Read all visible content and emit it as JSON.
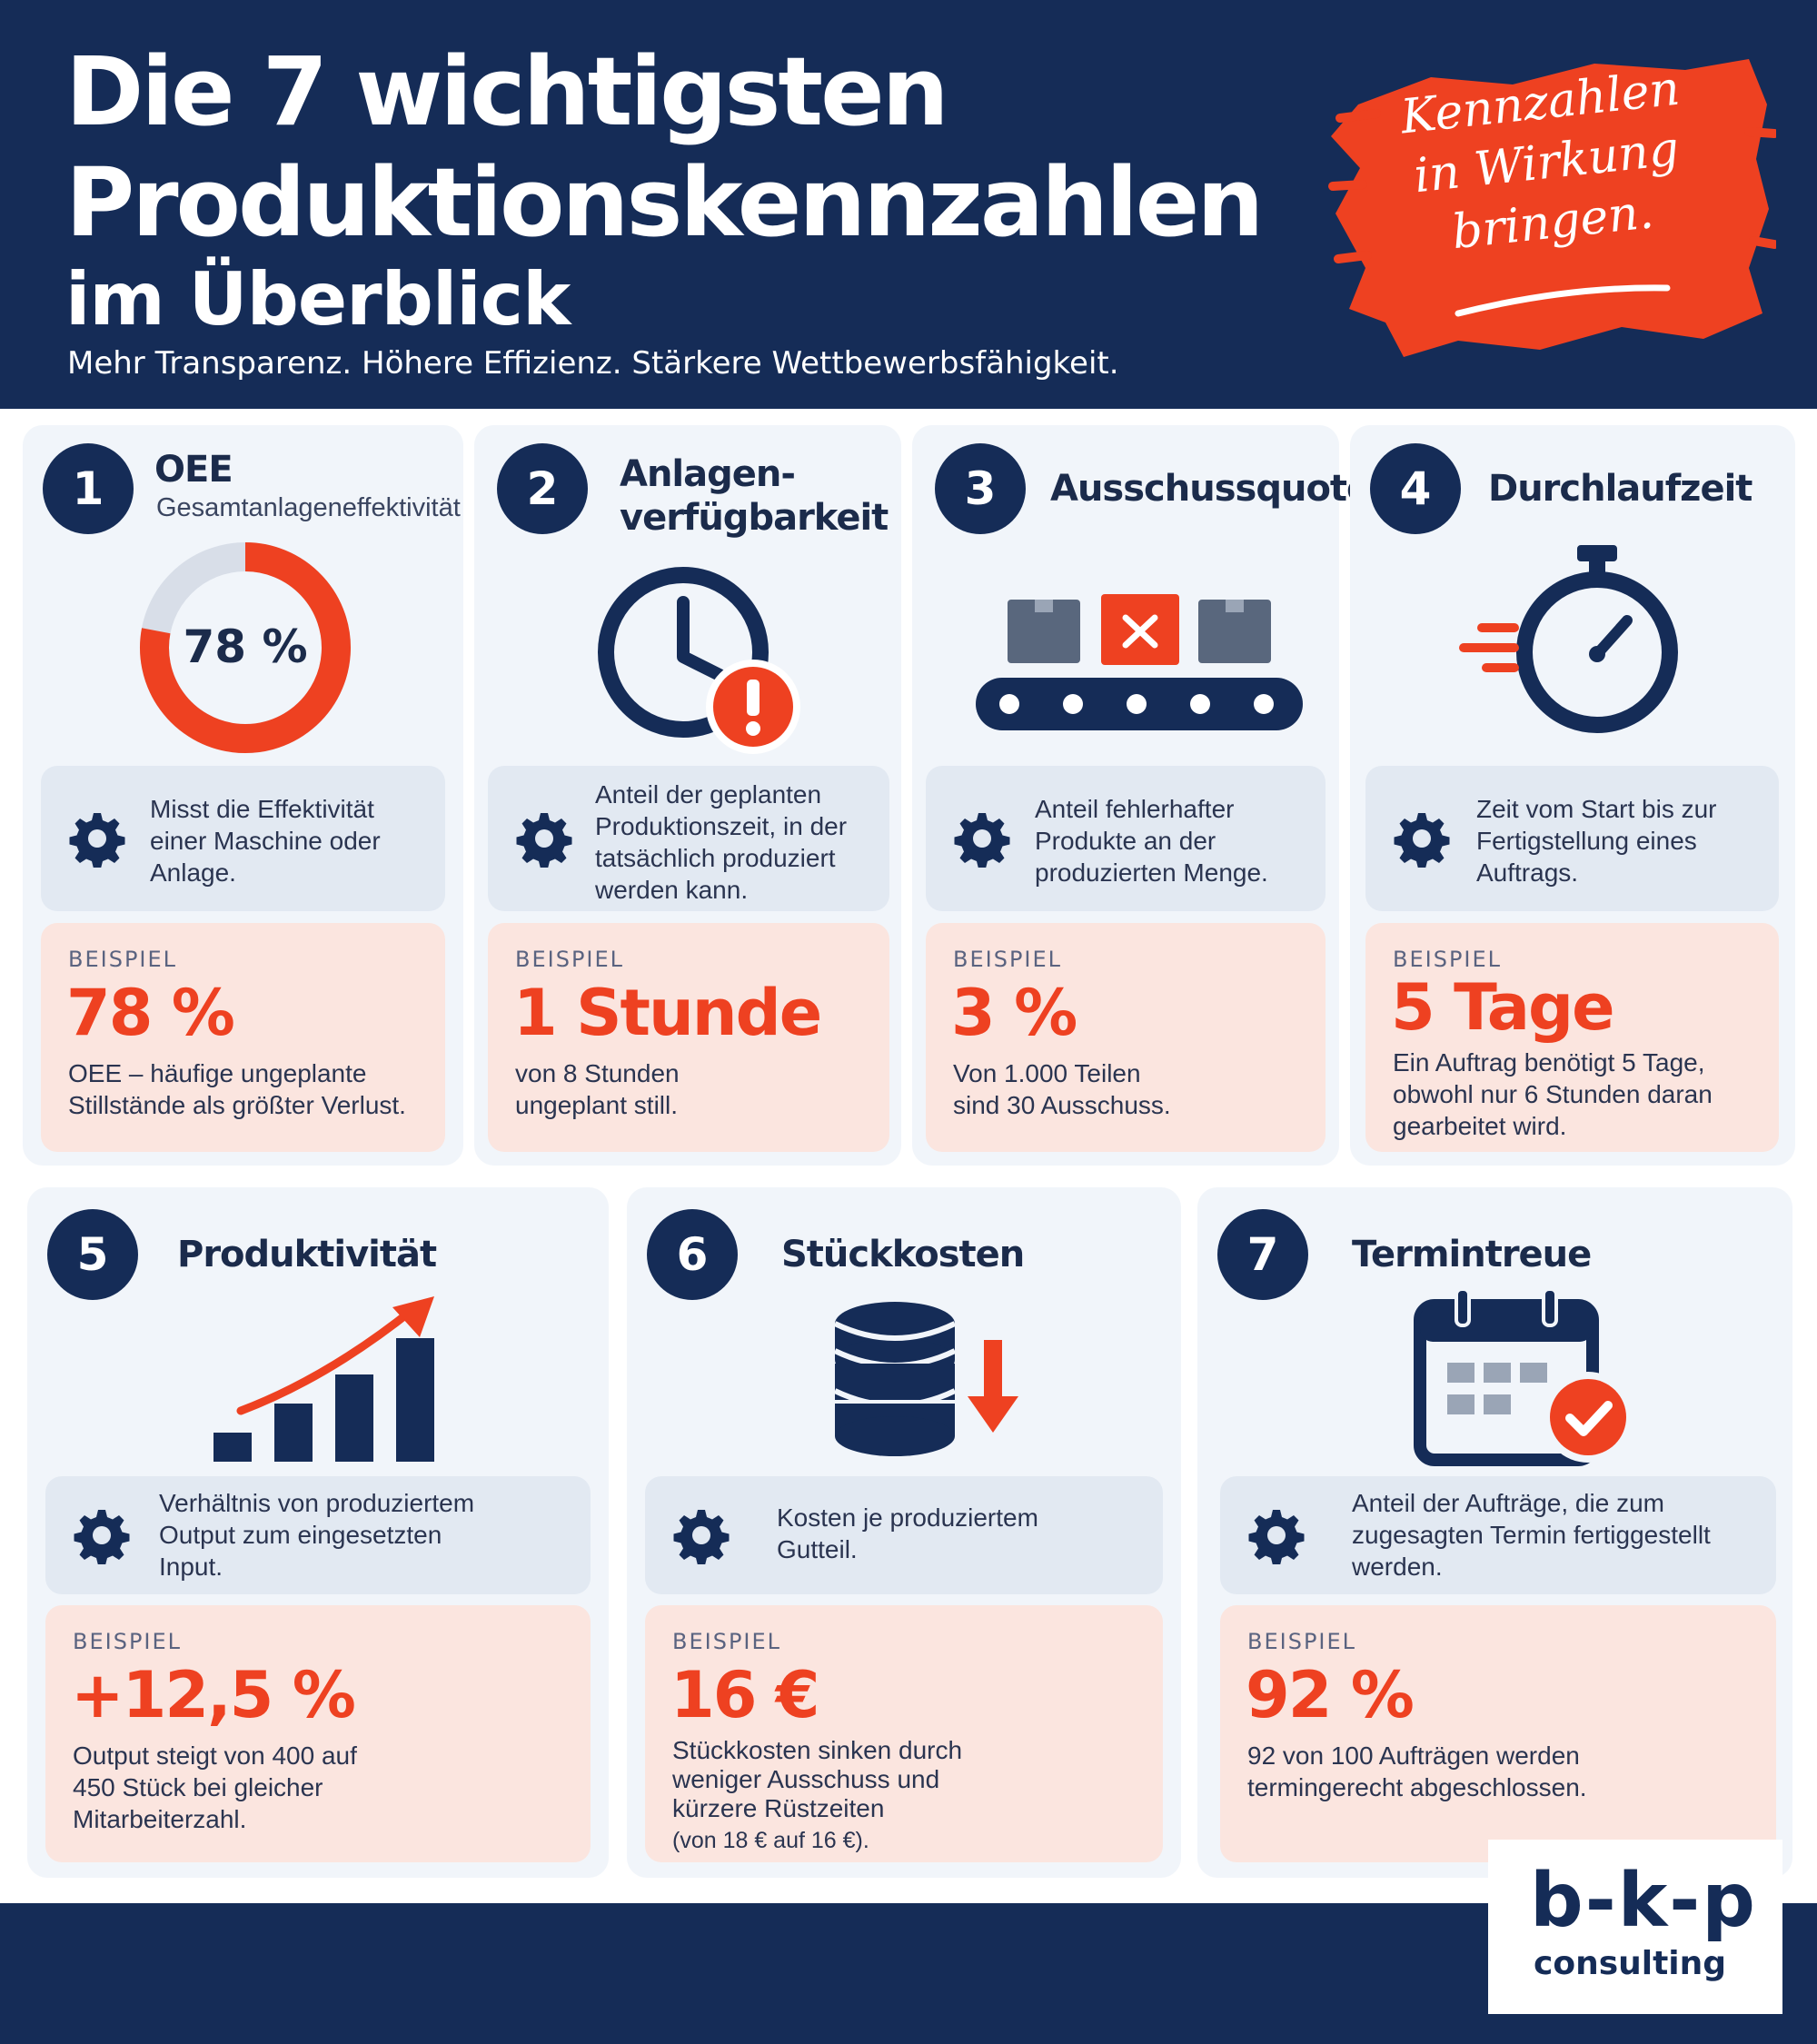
{
  "header": {
    "title_line1": "Die 7 wichtigsten",
    "title_line2": "Produktionskennzahlen",
    "title_line3": "im Überblick",
    "subtitle": "Mehr Transparenz. Höhere Effizienz. Stärkere Wettbewerbsfähigkeit.",
    "badge_lines": [
      "Kennzahlen",
      "in Wirkung",
      "bringen."
    ]
  },
  "colors": {
    "navy": "#152c57",
    "accent": "#ee4121",
    "card_bg": "#f1f5fa",
    "desc_bg": "#e2e9f2",
    "example_bg": "#fbe5df"
  },
  "kpis": [
    {
      "number": "1",
      "title": "OEE",
      "subtitle": "Gesamtanlageneffektivität",
      "icon": "donut-chart-icon",
      "gauge_value": "78 %",
      "gauge_fraction": 0.78,
      "description": "Misst die Effektivität einer Maschine oder Anlage.",
      "example_label": "BEISPIEL",
      "example_value": "78 %",
      "example_text": "OEE – häufige ungeplante Stillstände als größter Verlust."
    },
    {
      "number": "2",
      "title": "Anlagen-\nverfügbarkeit",
      "icon": "clock-warning-icon",
      "description": "Anteil der geplanten Produktionszeit, in der tatsächlich produziert werden kann.",
      "example_label": "BEISPIEL",
      "example_value": "1 Stunde",
      "example_text": "von 8 Stunden ungeplant still."
    },
    {
      "number": "3",
      "title": "Ausschussquote",
      "icon": "conveyor-reject-icon",
      "description": "Anteil fehlerhafter Produkte an der produzierten Menge.",
      "example_label": "BEISPIEL",
      "example_value": "3 %",
      "example_text": "Von 1.000 Teilen sind 30 Ausschuss."
    },
    {
      "number": "4",
      "title": "Durchlaufzeit",
      "icon": "stopwatch-icon",
      "description": "Zeit vom Start bis zur Fertigstellung eines Auftrags.",
      "example_label": "BEISPIEL",
      "example_value": "5 Tage",
      "example_text": "Ein Auftrag benötigt 5 Tage, obwohl nur 6 Stunden daran gearbeitet wird."
    },
    {
      "number": "5",
      "title": "Produktivität",
      "icon": "growth-chart-icon",
      "description": "Verhältnis von produziertem Output zum eingesetzten Input.",
      "example_label": "BEISPIEL",
      "example_value": "+12,5 %",
      "example_text": "Output steigt von 400 auf 450 Stück bei gleicher Mitarbeiterzahl."
    },
    {
      "number": "6",
      "title": "Stückkosten",
      "icon": "coins-down-icon",
      "description": "Kosten je produziertem Gutteil.",
      "example_label": "BEISPIEL",
      "example_value": "16 €",
      "example_text": "Stückkosten sinken durch weniger Ausschuss und kürzere Rüstzeiten",
      "example_note": "(von 18 € auf 16 €)."
    },
    {
      "number": "7",
      "title": "Termintreue",
      "icon": "calendar-check-icon",
      "description": "Anteil der Aufträge, die zum zugesagten Termin fertiggestellt werden.",
      "example_label": "BEISPIEL",
      "example_value": "92 %",
      "example_text": "92 von 100 Aufträgen werden termingerecht abgeschlossen."
    }
  ],
  "logo": {
    "main": "b-k-p",
    "sub": "consulting"
  }
}
